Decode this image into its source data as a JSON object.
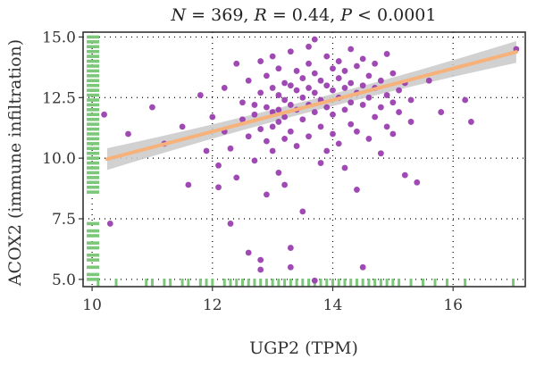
{
  "chart_data": {
    "type": "scatter",
    "title_parts": [
      {
        "text": "N",
        "italic": true
      },
      {
        "text": " = 369, ",
        "italic": false
      },
      {
        "text": "R",
        "italic": true
      },
      {
        "text": " = 0.44, ",
        "italic": false
      },
      {
        "text": "P",
        "italic": true
      },
      {
        "text": " < 0.0001",
        "italic": false
      }
    ],
    "xlabel": "UGP2 (TPM)",
    "ylabel": "ACOX2 (immune infiltration)",
    "xlim": [
      9.85,
      17.2
    ],
    "ylim": [
      4.7,
      15.2
    ],
    "xticks": [
      10,
      12,
      14,
      16
    ],
    "yticks": [
      5.0,
      7.5,
      10.0,
      12.5,
      15.0
    ],
    "xtick_labels": [
      "10",
      "12",
      "14",
      "16"
    ],
    "ytick_labels": [
      "5.0",
      "7.5",
      "10.0",
      "12.5",
      "15.0"
    ],
    "grid": true,
    "colors": {
      "points": "#9b3fb0",
      "fit": "#f6b27a",
      "band": "#c9c9c9",
      "rug": "#7cc77a"
    },
    "regression": {
      "intercept": 3.3,
      "slope": 0.65,
      "x_range": [
        10.25,
        17.05
      ],
      "band_halfwidth": 0.45
    },
    "series": [
      {
        "points": [
          [
            10.2,
            11.8
          ],
          [
            10.3,
            7.3
          ],
          [
            10.6,
            11.0
          ],
          [
            11.0,
            12.1
          ],
          [
            11.2,
            10.6
          ],
          [
            11.5,
            11.3
          ],
          [
            11.6,
            8.9
          ],
          [
            11.8,
            12.6
          ],
          [
            11.9,
            10.3
          ],
          [
            12.0,
            11.7
          ],
          [
            12.1,
            9.7
          ],
          [
            12.1,
            8.8
          ],
          [
            12.2,
            12.9
          ],
          [
            12.2,
            11.1
          ],
          [
            12.3,
            10.4
          ],
          [
            12.3,
            7.3
          ],
          [
            12.4,
            13.9
          ],
          [
            12.4,
            9.2
          ],
          [
            12.5,
            11.6
          ],
          [
            12.5,
            12.3
          ],
          [
            12.6,
            10.9
          ],
          [
            12.6,
            13.2
          ],
          [
            12.6,
            6.1
          ],
          [
            12.7,
            12.2
          ],
          [
            12.7,
            11.8
          ],
          [
            12.7,
            9.9
          ],
          [
            12.8,
            14.0
          ],
          [
            12.8,
            12.7
          ],
          [
            12.8,
            11.2
          ],
          [
            12.8,
            5.8
          ],
          [
            12.8,
            5.4
          ],
          [
            12.9,
            13.4
          ],
          [
            12.9,
            12.1
          ],
          [
            12.9,
            10.7
          ],
          [
            12.9,
            8.5
          ],
          [
            13.0,
            14.2
          ],
          [
            13.0,
            12.9
          ],
          [
            13.0,
            11.9
          ],
          [
            13.0,
            11.3
          ],
          [
            13.0,
            10.3
          ],
          [
            13.1,
            13.7
          ],
          [
            13.1,
            12.6
          ],
          [
            13.1,
            12.0
          ],
          [
            13.1,
            11.5
          ],
          [
            13.1,
            9.4
          ],
          [
            13.2,
            13.1
          ],
          [
            13.2,
            12.4
          ],
          [
            13.2,
            11.7
          ],
          [
            13.2,
            10.8
          ],
          [
            13.2,
            8.9
          ],
          [
            13.3,
            14.4
          ],
          [
            13.3,
            13.0
          ],
          [
            13.3,
            12.2
          ],
          [
            13.3,
            11.1
          ],
          [
            13.3,
            6.3
          ],
          [
            13.3,
            5.5
          ],
          [
            13.4,
            13.6
          ],
          [
            13.4,
            12.8
          ],
          [
            13.4,
            12.0
          ],
          [
            13.4,
            10.5
          ],
          [
            13.5,
            13.3
          ],
          [
            13.5,
            12.5
          ],
          [
            13.5,
            11.6
          ],
          [
            13.5,
            7.8
          ],
          [
            13.6,
            14.6
          ],
          [
            13.6,
            13.9
          ],
          [
            13.6,
            12.9
          ],
          [
            13.6,
            12.2
          ],
          [
            13.6,
            10.9
          ],
          [
            13.7,
            14.9
          ],
          [
            13.7,
            13.5
          ],
          [
            13.7,
            12.7
          ],
          [
            13.7,
            11.9
          ],
          [
            13.7,
            4.95
          ],
          [
            13.8,
            13.2
          ],
          [
            13.8,
            12.4
          ],
          [
            13.8,
            11.3
          ],
          [
            13.8,
            9.8
          ],
          [
            13.9,
            14.2
          ],
          [
            13.9,
            13.0
          ],
          [
            13.9,
            12.1
          ],
          [
            13.9,
            10.3
          ],
          [
            14.0,
            13.7
          ],
          [
            14.0,
            12.8
          ],
          [
            14.0,
            11.8
          ],
          [
            14.0,
            11.0
          ],
          [
            14.1,
            14.0
          ],
          [
            14.1,
            13.3
          ],
          [
            14.1,
            12.5
          ],
          [
            14.1,
            10.6
          ],
          [
            14.2,
            13.6
          ],
          [
            14.2,
            12.9
          ],
          [
            14.2,
            12.0
          ],
          [
            14.2,
            9.6
          ],
          [
            14.3,
            14.5
          ],
          [
            14.3,
            13.1
          ],
          [
            14.3,
            12.3
          ],
          [
            14.3,
            11.4
          ],
          [
            14.4,
            13.8
          ],
          [
            14.4,
            12.7
          ],
          [
            14.4,
            11.1
          ],
          [
            14.4,
            8.7
          ],
          [
            14.5,
            14.1
          ],
          [
            14.5,
            13.0
          ],
          [
            14.5,
            12.2
          ],
          [
            14.5,
            5.5
          ],
          [
            14.6,
            13.4
          ],
          [
            14.6,
            12.5
          ],
          [
            14.6,
            10.8
          ],
          [
            14.7,
            13.9
          ],
          [
            14.7,
            12.9
          ],
          [
            14.7,
            11.7
          ],
          [
            14.8,
            13.2
          ],
          [
            14.8,
            12.1
          ],
          [
            14.8,
            10.2
          ],
          [
            14.9,
            14.3
          ],
          [
            14.9,
            12.6
          ],
          [
            14.9,
            11.3
          ],
          [
            15.0,
            13.5
          ],
          [
            15.0,
            12.3
          ],
          [
            15.0,
            11.0
          ],
          [
            15.1,
            12.8
          ],
          [
            15.1,
            11.9
          ],
          [
            15.2,
            13.1
          ],
          [
            15.2,
            9.3
          ],
          [
            15.3,
            12.4
          ],
          [
            15.3,
            11.5
          ],
          [
            15.4,
            9.0
          ],
          [
            15.6,
            13.2
          ],
          [
            15.8,
            11.9
          ],
          [
            16.2,
            12.4
          ],
          [
            16.3,
            11.5
          ],
          [
            17.05,
            14.5
          ]
        ]
      }
    ],
    "rug_x": [
      10.1,
      10.4,
      10.9,
      11.0,
      11.2,
      11.3,
      11.5,
      11.6,
      11.8,
      11.9,
      12.0,
      12.2,
      12.3,
      12.4,
      12.5,
      12.6,
      12.7,
      12.8,
      12.9,
      13.0,
      13.1,
      13.2,
      13.3,
      13.4,
      13.5,
      13.6,
      13.7,
      13.8,
      13.9,
      14.0,
      14.1,
      14.2,
      14.3,
      14.4,
      14.5,
      14.6,
      14.7,
      14.8,
      14.9,
      15.0,
      15.1,
      15.3,
      15.5,
      15.7,
      15.9,
      16.2,
      17.0
    ],
    "rug_y": [
      5.0,
      5.2,
      5.5,
      5.8,
      6.0,
      6.3,
      6.5,
      6.8,
      7.0,
      7.3,
      8.6,
      8.8,
      9.0,
      9.2,
      9.4,
      9.6,
      9.8,
      10.0,
      10.2,
      10.4,
      10.6,
      10.8,
      11.0,
      11.2,
      11.4,
      11.6,
      11.8,
      12.0,
      12.2,
      12.4,
      12.6,
      12.8,
      13.0,
      13.2,
      13.4,
      13.6,
      13.8,
      14.0,
      14.2,
      14.4,
      14.6,
      14.8,
      15.0
    ]
  }
}
